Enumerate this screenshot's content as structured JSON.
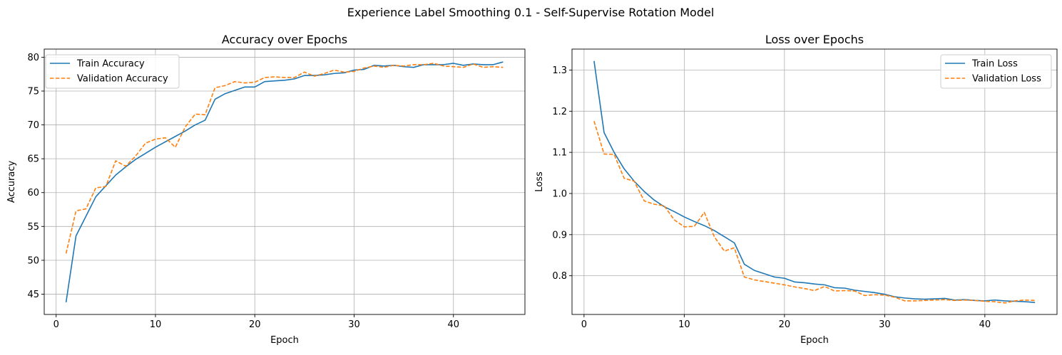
{
  "suptitle": "Experience Label Smoothing 0.1 - Self-Supervise Rotation Model",
  "colors": {
    "train": "#1f77b4",
    "validation": "#ff7f0e",
    "grid": "#b0b0b0",
    "axis": "#000000"
  },
  "chart_data": [
    {
      "type": "line",
      "title": "Accuracy over Epochs",
      "xlabel": "Epoch",
      "ylabel": "Accuracy",
      "xlim": [
        -1.2,
        47.2
      ],
      "ylim": [
        42.0,
        81.2
      ],
      "xticks": [
        0,
        10,
        20,
        30,
        40
      ],
      "yticks": [
        45,
        50,
        55,
        60,
        65,
        70,
        75,
        80
      ],
      "grid": true,
      "legend": "upper left",
      "x": [
        1,
        2,
        3,
        4,
        5,
        6,
        7,
        8,
        9,
        10,
        11,
        12,
        13,
        14,
        15,
        16,
        17,
        18,
        19,
        20,
        21,
        22,
        23,
        24,
        25,
        26,
        27,
        28,
        29,
        30,
        31,
        32,
        33,
        34,
        35,
        36,
        37,
        38,
        39,
        40,
        41,
        42,
        43,
        44,
        45
      ],
      "series": [
        {
          "name": "Train Accuracy",
          "style": "solid",
          "values": [
            43.8,
            53.6,
            56.5,
            59.4,
            61.0,
            62.6,
            63.8,
            64.9,
            65.8,
            66.7,
            67.5,
            68.3,
            69.1,
            70.0,
            70.7,
            73.8,
            74.6,
            75.1,
            75.6,
            75.6,
            76.4,
            76.5,
            76.6,
            76.8,
            77.3,
            77.3,
            77.4,
            77.6,
            77.7,
            78.1,
            78.2,
            78.8,
            78.7,
            78.8,
            78.6,
            78.5,
            78.9,
            78.9,
            78.9,
            79.1,
            78.8,
            79.0,
            78.9,
            78.9,
            79.3
          ]
        },
        {
          "name": "Validation Accuracy",
          "style": "dashed",
          "values": [
            51.0,
            57.3,
            57.6,
            60.7,
            60.9,
            64.7,
            63.9,
            65.4,
            67.3,
            67.9,
            68.1,
            66.7,
            69.7,
            71.6,
            71.5,
            75.5,
            75.8,
            76.4,
            76.2,
            76.3,
            77.0,
            77.1,
            77.0,
            77.0,
            77.8,
            77.2,
            77.6,
            78.1,
            77.8,
            77.9,
            78.4,
            78.7,
            78.5,
            78.8,
            78.7,
            78.9,
            78.9,
            79.1,
            78.7,
            78.6,
            78.5,
            79.0,
            78.5,
            78.6,
            78.5
          ]
        }
      ]
    },
    {
      "type": "line",
      "title": "Loss over Epochs",
      "xlabel": "Epoch",
      "ylabel": "Loss",
      "xlim": [
        -1.2,
        47.2
      ],
      "ylim": [
        0.706,
        1.351
      ],
      "xticks": [
        0,
        10,
        20,
        30,
        40
      ],
      "yticks": [
        0.8,
        0.9,
        1.0,
        1.1,
        1.2,
        1.3
      ],
      "grid": true,
      "legend": "upper right",
      "x": [
        1,
        2,
        3,
        4,
        5,
        6,
        7,
        8,
        9,
        10,
        11,
        12,
        13,
        14,
        15,
        16,
        17,
        18,
        19,
        20,
        21,
        22,
        23,
        24,
        25,
        26,
        27,
        28,
        29,
        30,
        31,
        32,
        33,
        34,
        35,
        36,
        37,
        38,
        39,
        40,
        41,
        42,
        43,
        44,
        45
      ],
      "series": [
        {
          "name": "Train Loss",
          "style": "solid",
          "values": [
            1.322,
            1.148,
            1.1,
            1.06,
            1.03,
            1.005,
            0.984,
            0.968,
            0.956,
            0.943,
            0.932,
            0.922,
            0.91,
            0.895,
            0.88,
            0.828,
            0.813,
            0.805,
            0.797,
            0.794,
            0.785,
            0.783,
            0.78,
            0.778,
            0.771,
            0.77,
            0.765,
            0.762,
            0.759,
            0.755,
            0.749,
            0.746,
            0.744,
            0.743,
            0.744,
            0.745,
            0.741,
            0.742,
            0.74,
            0.739,
            0.741,
            0.739,
            0.738,
            0.737,
            0.735
          ]
        },
        {
          "name": "Validation Loss",
          "style": "dashed",
          "values": [
            1.176,
            1.096,
            1.095,
            1.037,
            1.03,
            0.982,
            0.974,
            0.97,
            0.936,
            0.919,
            0.92,
            0.954,
            0.895,
            0.86,
            0.868,
            0.797,
            0.79,
            0.786,
            0.782,
            0.778,
            0.773,
            0.769,
            0.764,
            0.774,
            0.763,
            0.764,
            0.763,
            0.752,
            0.754,
            0.753,
            0.748,
            0.739,
            0.739,
            0.74,
            0.741,
            0.742,
            0.74,
            0.741,
            0.74,
            0.738,
            0.737,
            0.734,
            0.739,
            0.741,
            0.74
          ]
        }
      ]
    }
  ]
}
